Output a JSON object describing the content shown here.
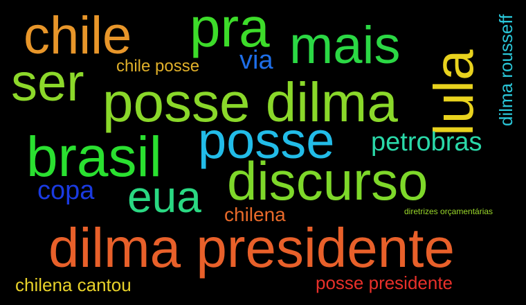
{
  "words": [
    {
      "id": "chile",
      "text": "chile",
      "color": "#e8962a"
    },
    {
      "id": "pra",
      "text": "pra",
      "color": "#3ddc2a"
    },
    {
      "id": "mais",
      "text": "mais",
      "color": "#2bd844"
    },
    {
      "id": "ser",
      "text": "ser",
      "color": "#8cd82a"
    },
    {
      "id": "chile-posse",
      "text": "chile posse",
      "color": "#e0b02a"
    },
    {
      "id": "via",
      "text": "via",
      "color": "#1e6ee8"
    },
    {
      "id": "lula",
      "text": "lula",
      "color": "#e8d21e"
    },
    {
      "id": "dilma-rousseff",
      "text": "dilma rousseff",
      "color": "#2ac6d8"
    },
    {
      "id": "posse-dilma",
      "text": "posse dilma",
      "color": "#8ad82a"
    },
    {
      "id": "posse",
      "text": "posse",
      "color": "#22bce8"
    },
    {
      "id": "petrobras",
      "text": "petrobras",
      "color": "#2ad8a8"
    },
    {
      "id": "brasil",
      "text": "brasil",
      "color": "#2ae030"
    },
    {
      "id": "discurso",
      "text": "discurso",
      "color": "#7ed82a"
    },
    {
      "id": "copa",
      "text": "copa",
      "color": "#1a3ae0"
    },
    {
      "id": "eua",
      "text": "eua",
      "color": "#2ad882"
    },
    {
      "id": "chilena",
      "text": "chilena",
      "color": "#e86a2a"
    },
    {
      "id": "diretrizes",
      "text": "diretrizes orçamentárias",
      "color": "#9ad82a"
    },
    {
      "id": "dilma-presidente",
      "text": "dilma presidente",
      "color": "#e8602a"
    },
    {
      "id": "chilena-cantou",
      "text": "chilena cantou",
      "color": "#e8d22a"
    },
    {
      "id": "posse-presidente",
      "text": "posse presidente",
      "color": "#e8302a"
    }
  ]
}
